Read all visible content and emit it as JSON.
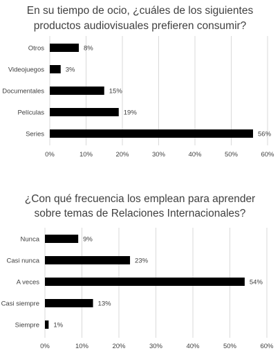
{
  "chart_data": [
    {
      "type": "bar",
      "orientation": "horizontal",
      "title_lines": [
        "En su tiempo de ocio, ¿cuáles de los siguientes",
        "productos audiovisuales prefieren consumir?"
      ],
      "categories": [
        "Otros",
        "Videojuegos",
        "Documentales",
        "Películas",
        "Series"
      ],
      "values": [
        8,
        3,
        15,
        19,
        56
      ],
      "data_labels": [
        "8%",
        "3%",
        "15%",
        "19%",
        "56%"
      ],
      "xlim": [
        0,
        60
      ],
      "ticks": [
        "0%",
        "10%",
        "20%",
        "30%",
        "40%",
        "50%",
        "60%"
      ],
      "grid": true,
      "bar_color": "#000000"
    },
    {
      "type": "bar",
      "orientation": "horizontal",
      "title_lines": [
        "¿Con qué frecuencia los emplean para aprender",
        "sobre temas de Relaciones Internacionales?"
      ],
      "categories": [
        "Nunca",
        "Casi nunca",
        "A veces",
        "Casi siempre",
        "Siempre"
      ],
      "values": [
        9,
        23,
        54,
        13,
        1
      ],
      "data_labels": [
        "9%",
        "23%",
        "54%",
        "13%",
        "1%"
      ],
      "xlim": [
        0,
        60
      ],
      "ticks": [
        "0%",
        "10%",
        "20%",
        "30%",
        "40%",
        "50%",
        "60%"
      ],
      "grid": true,
      "bar_color": "#000000"
    }
  ]
}
